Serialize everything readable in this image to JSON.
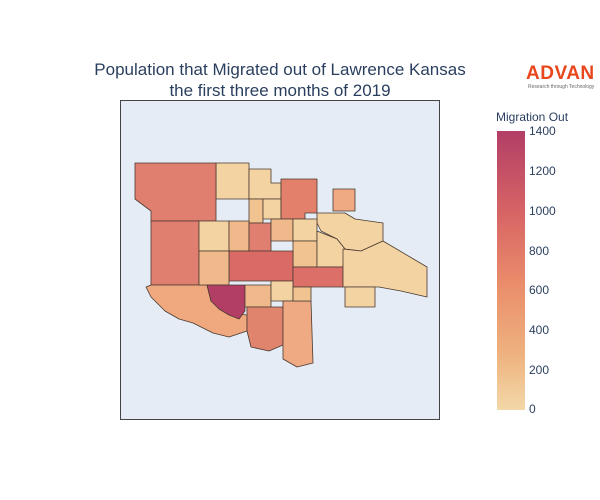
{
  "title": {
    "line1": "Population that Migrated out of Lawrence Kansas",
    "line2": "the first three months of 2019"
  },
  "logo": {
    "word": "ADVAN",
    "tagline": "Research through Technology"
  },
  "colorbar": {
    "title": "Migration Out",
    "ticks": [
      "1400",
      "1200",
      "1000",
      "800",
      "600",
      "400",
      "200",
      "0"
    ],
    "range": [
      0,
      1400
    ],
    "colors": [
      "#f3d8a8",
      "#eeb27f",
      "#ea8d6b",
      "#d86565",
      "#b23e66"
    ]
  },
  "map": {
    "background": "#e5ecf6",
    "border_color": "#444444",
    "region_stroke": "#4a3a30",
    "highlight_region": "southwest-block",
    "highlight_value": 1400,
    "values": {
      "west-large": 880,
      "northwest-upper": 150,
      "north-upper": 120,
      "north-east-block": 880,
      "west-center": 860,
      "center-left": 200,
      "center": 960,
      "central-east": 780,
      "southwest-block": 1400,
      "south-west-lower": 480,
      "south-center": 700,
      "south-east": 460,
      "east-spur": 120,
      "east-lobe": 180,
      "small-island": 520
    }
  }
}
